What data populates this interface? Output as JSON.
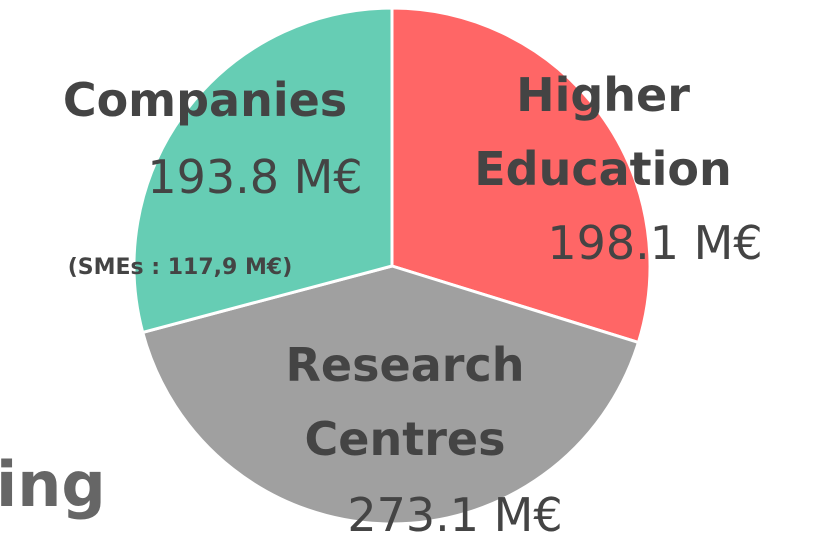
{
  "chart_data": {
    "type": "pie",
    "categories": [
      "Higher Education",
      "Research Centres",
      "Companies"
    ],
    "values": [
      198.1,
      273.1,
      193.8
    ],
    "value_labels": [
      "198.1 M€",
      "273.1 M€",
      "193.8 M€"
    ],
    "colors": [
      "#ff6666",
      "#a0a0a0",
      "#66cdb4"
    ],
    "annotations": [
      "(SMEs : 117,9 M€)",
      "ing"
    ]
  }
}
